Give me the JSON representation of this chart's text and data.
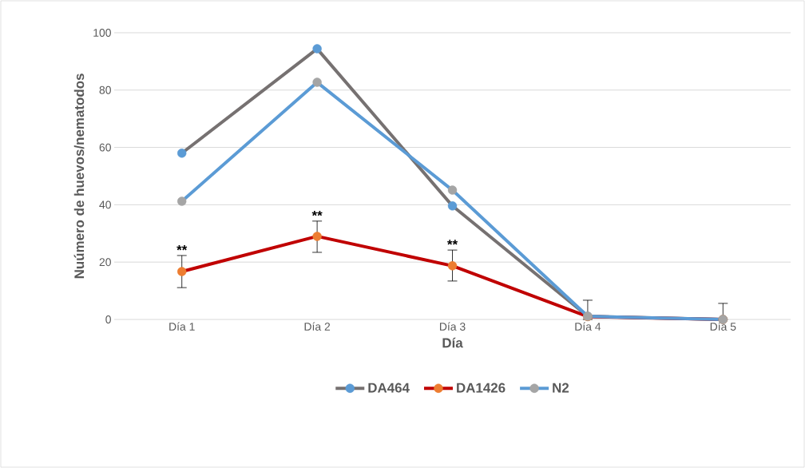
{
  "chart_data": {
    "type": "line",
    "xlabel": "Día",
    "ylabel": "Nuúmero de huevos/nematodos",
    "categories": [
      "Día 1",
      "Día 2",
      "Día 3",
      "Día 4",
      "Día 5"
    ],
    "series": [
      {
        "name": "DA464",
        "color": "#767171",
        "colors": [
          "#5b9bd5",
          "#5b9bd5",
          "#5b9bd5",
          "#5b9bd5",
          "#5b9bd5"
        ],
        "values": [
          58,
          94.4,
          39.6,
          1.1,
          0
        ]
      },
      {
        "name": "DA1426",
        "color": "#c00000",
        "colors": [
          "#ed7d31",
          "#ed7d31",
          "#ed7d31",
          "#ed7d31",
          "#ed7d31"
        ],
        "values": [
          16.7,
          29,
          18.7,
          1,
          0
        ],
        "errors": [
          [
            11.1,
            22.3
          ],
          [
            23.4,
            34.3
          ],
          [
            13.4,
            24.2
          ],
          [
            0,
            6.7
          ],
          [
            0,
            5.6
          ]
        ]
      },
      {
        "name": "N2",
        "color": "#5b9bd5",
        "colors": [
          "#a5a5a5",
          "#a5a5a5",
          "#a5a5a5",
          "#a5a5a5",
          "#a5a5a5"
        ],
        "values": [
          41.2,
          82.7,
          45.1,
          1.1,
          0
        ]
      }
    ],
    "ylim": [
      0,
      100
    ],
    "yticks": [
      0,
      20,
      40,
      60,
      80,
      100
    ],
    "grid": "y",
    "legend": "bottom",
    "marker": "circle",
    "line_style": "solid",
    "annotations": [
      "**",
      "**",
      "**"
    ]
  }
}
